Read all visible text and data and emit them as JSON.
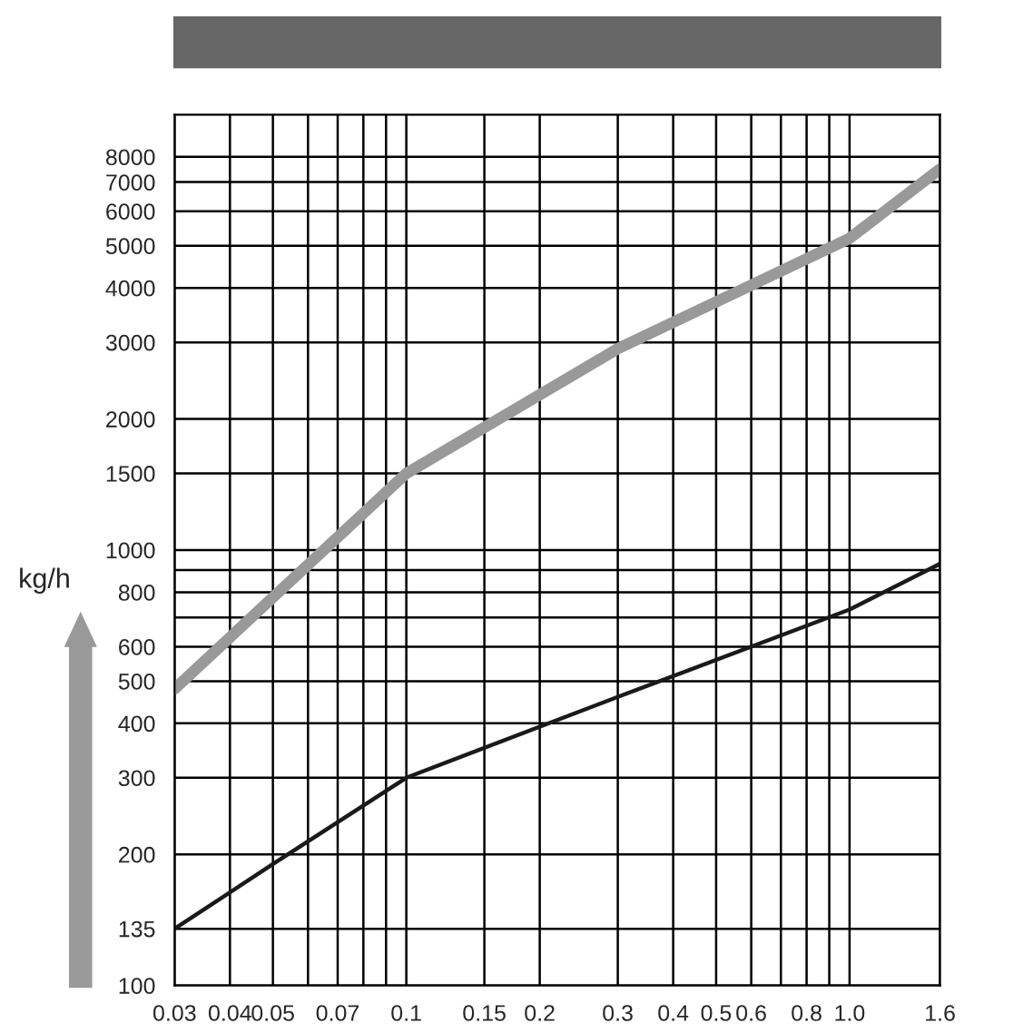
{
  "chart_data": {
    "type": "line",
    "ylabel": "kg/h",
    "log": "xy",
    "grid": true,
    "marker": "none",
    "line_style": "solid",
    "series": [
      {
        "color": "#999999",
        "x": [
          0.03,
          0.1,
          0.3,
          1.0,
          1.6
        ],
        "values": [
          480,
          1500,
          2900,
          5200,
          7500
        ]
      },
      {
        "color": "#1a1a1a",
        "x": [
          0.03,
          0.05,
          0.1,
          0.3,
          1.0,
          1.6
        ],
        "values": [
          135,
          190,
          300,
          460,
          730,
          930
        ]
      }
    ],
    "xlim": [
      0.03,
      1.6
    ],
    "ylim": [
      100,
      10000
    ],
    "xticks": [
      0.03,
      0.04,
      0.05,
      {
        "value": 0.06,
        "label": null
      },
      0.07,
      {
        "value": 0.08,
        "label": null
      },
      {
        "value": 0.09,
        "label": null
      },
      0.1,
      0.15,
      0.2,
      0.3,
      0.4,
      0.5,
      0.6,
      {
        "value": 0.7,
        "label": null
      },
      0.8,
      {
        "value": 0.9,
        "label": null
      },
      {
        "value": 1.0,
        "label": "1.0"
      },
      1.6
    ],
    "yticks": [
      100,
      135,
      200,
      300,
      400,
      500,
      600,
      {
        "value": 700,
        "label": null
      },
      800,
      {
        "value": 900,
        "label": null
      },
      1000,
      1500,
      2000,
      3000,
      4000,
      5000,
      6000,
      7000,
      8000
    ]
  }
}
